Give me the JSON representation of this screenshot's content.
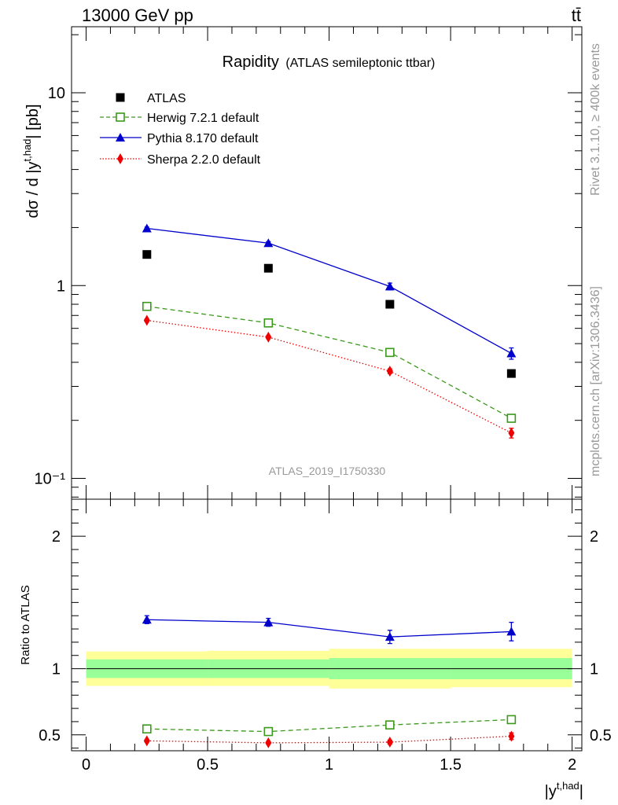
{
  "header": {
    "energy_label": "13000 GeV pp",
    "process_label": "tt̄"
  },
  "side_labels": {
    "rivet": "Rivet 3.1.10, ≥ 400k events",
    "mcplots": "mcplots.cern.ch [arXiv:1306.3436]"
  },
  "chart_data": [
    {
      "type": "line",
      "panel": "main",
      "title": "Rapidity",
      "subtitle": "(ATLAS semileptonic ttbar)",
      "analysis_label": "ATLAS_2019_I1750330",
      "ylabel": "dσ / d |y^{t,had}| [pb]",
      "xlabel": "",
      "yscale": "log",
      "ylim": [
        0.078,
        22
      ],
      "xlim": [
        -0.06,
        2.04
      ],
      "y_ticks": [
        {
          "value": 10,
          "label": "10"
        },
        {
          "value": 1,
          "label": "1"
        },
        {
          "value": 0.1,
          "label": "10⁻¹"
        }
      ],
      "x": [
        0.25,
        0.75,
        1.25,
        1.75
      ],
      "series": [
        {
          "name": "ATLAS",
          "style": "data-square",
          "color": "#000000",
          "values": [
            1.45,
            1.23,
            0.8,
            0.35
          ],
          "errors": [
            0,
            0,
            0,
            0
          ]
        },
        {
          "name": "Herwig 7.2.1 default",
          "style": "dashed-open-square",
          "color": "#3a9a1a",
          "values": [
            0.78,
            0.64,
            0.45,
            0.205
          ],
          "errors": [
            0.01,
            0.01,
            0.01,
            0.006
          ]
        },
        {
          "name": "Pythia 8.170 default",
          "style": "solid-triangle",
          "color": "#0000cc",
          "values": [
            1.98,
            1.66,
            0.99,
            0.445
          ],
          "errors": [
            0.03,
            0.03,
            0.04,
            0.03
          ]
        },
        {
          "name": "Sherpa 2.2.0 default",
          "style": "dotted-diamond",
          "color": "#ee0000",
          "values": [
            0.66,
            0.54,
            0.36,
            0.172
          ],
          "errors": [
            0.01,
            0.01,
            0.01,
            0.01
          ]
        }
      ]
    },
    {
      "type": "line",
      "panel": "ratio",
      "ylabel": "Ratio to ATLAS",
      "xlabel": "|y^{t,had}|",
      "ylim": [
        0.38,
        2.28
      ],
      "xlim": [
        -0.06,
        2.04
      ],
      "y_ticks": [
        {
          "value": 2,
          "label": "2"
        },
        {
          "value": 1,
          "label": "1"
        },
        {
          "value": 0.5,
          "label": "0.5"
        }
      ],
      "x_ticks": [
        {
          "value": 0,
          "label": "0"
        },
        {
          "value": 0.5,
          "label": "0.5"
        },
        {
          "value": 1,
          "label": "1"
        },
        {
          "value": 1.5,
          "label": "1.5"
        },
        {
          "value": 2,
          "label": "2"
        }
      ],
      "bins": [
        {
          "lo": 0.0,
          "hi": 0.5,
          "stat_lo": 0.93,
          "stat_hi": 1.07,
          "tot_lo": 0.87,
          "tot_hi": 1.13
        },
        {
          "lo": 0.5,
          "hi": 1.0,
          "stat_lo": 0.93,
          "stat_hi": 1.07,
          "tot_lo": 0.87,
          "tot_hi": 1.135
        },
        {
          "lo": 1.0,
          "hi": 1.5,
          "stat_lo": 0.92,
          "stat_hi": 1.08,
          "tot_lo": 0.85,
          "tot_hi": 1.15
        },
        {
          "lo": 1.5,
          "hi": 2.0,
          "stat_lo": 0.92,
          "stat_hi": 1.08,
          "tot_lo": 0.86,
          "tot_hi": 1.15
        }
      ],
      "x": [
        0.25,
        0.75,
        1.25,
        1.75
      ],
      "series": [
        {
          "name": "Herwig 7.2.1 default",
          "style": "dashed-open-square",
          "color": "#3a9a1a",
          "values": [
            0.545,
            0.525,
            0.575,
            0.615
          ],
          "errors": [
            0.01,
            0.01,
            0.01,
            0.015
          ]
        },
        {
          "name": "Pythia 8.170 default",
          "style": "solid-triangle",
          "color": "#0000cc",
          "values": [
            1.37,
            1.35,
            1.24,
            1.28
          ],
          "errors": [
            0.03,
            0.03,
            0.05,
            0.07
          ]
        },
        {
          "name": "Sherpa 2.2.0 default",
          "style": "dotted-diamond",
          "color": "#ee0000",
          "values": [
            0.455,
            0.44,
            0.445,
            0.49
          ],
          "errors": [
            0.01,
            0.01,
            0.015,
            0.025
          ]
        }
      ]
    }
  ]
}
